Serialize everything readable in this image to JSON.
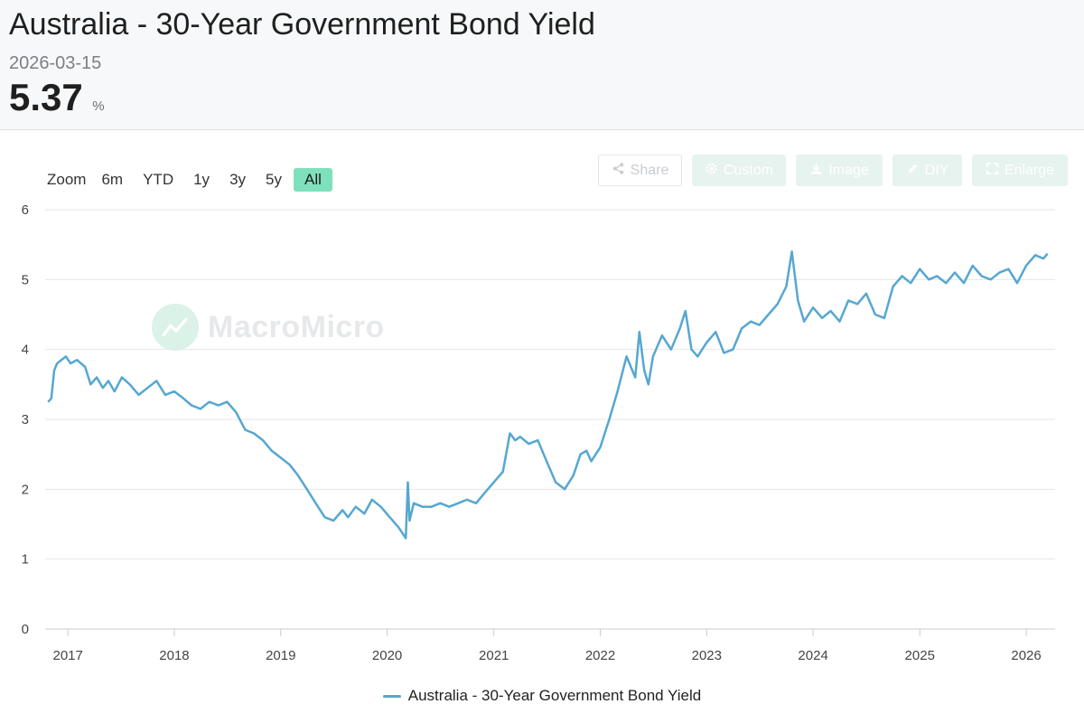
{
  "header": {
    "title": "Australia - 30-Year Government Bond Yield",
    "date": "2026-03-15",
    "value": "5.37",
    "unit": "%"
  },
  "zoom": {
    "label": "Zoom",
    "options": [
      "6m",
      "YTD",
      "1y",
      "3y",
      "5y",
      "All"
    ],
    "active": "All"
  },
  "toolbar": {
    "share": "Share",
    "custom": "Custom",
    "image": "Image",
    "diy": "DIY",
    "enlarge": "Enlarge"
  },
  "watermark": {
    "text": "MacroMicro"
  },
  "legend": {
    "label": "Australia - 30-Year Government Bond Yield"
  },
  "colors": {
    "series": "#56a7d1",
    "zoom_active": "#7fe0bd",
    "grid": "#e6e6e6"
  },
  "chart_data": {
    "type": "line",
    "title": "",
    "xlabel": "",
    "ylabel": "",
    "ylim": [
      0,
      6
    ],
    "yticks": [
      "0",
      "1",
      "2",
      "3",
      "4",
      "5",
      "6"
    ],
    "xticks": [
      "2017",
      "2018",
      "2019",
      "2020",
      "2021",
      "2022",
      "2023",
      "2024",
      "2025",
      "2026"
    ],
    "xlim": [
      "2016-10-15",
      "2026-04-10"
    ],
    "grid": true,
    "legend_position": "bottom-center",
    "series": [
      {
        "name": "Australia - 30-Year Government Bond Yield",
        "color": "#56a7d1",
        "x": [
          "2016-10-25",
          "2016-11-05",
          "2016-11-15",
          "2016-11-25",
          "2016-12-10",
          "2016-12-25",
          "2017-01-10",
          "2017-02-01",
          "2017-03-01",
          "2017-03-20",
          "2017-04-10",
          "2017-05-01",
          "2017-05-20",
          "2017-06-10",
          "2017-07-05",
          "2017-08-01",
          "2017-09-01",
          "2017-10-01",
          "2017-11-01",
          "2017-12-01",
          "2018-01-01",
          "2018-02-01",
          "2018-03-01",
          "2018-04-01",
          "2018-05-01",
          "2018-06-01",
          "2018-07-01",
          "2018-08-01",
          "2018-09-01",
          "2018-10-01",
          "2018-11-01",
          "2018-12-01",
          "2019-01-01",
          "2019-02-01",
          "2019-03-01",
          "2019-04-01",
          "2019-05-01",
          "2019-06-01",
          "2019-07-01",
          "2019-08-01",
          "2019-08-20",
          "2019-09-15",
          "2019-10-15",
          "2019-11-10",
          "2019-12-10",
          "2020-01-10",
          "2020-02-10",
          "2020-03-05",
          "2020-03-12",
          "2020-03-18",
          "2020-04-01",
          "2020-05-01",
          "2020-06-01",
          "2020-07-01",
          "2020-08-01",
          "2020-09-01",
          "2020-10-01",
          "2020-11-01",
          "2020-12-01",
          "2021-01-01",
          "2021-02-01",
          "2021-02-25",
          "2021-03-15",
          "2021-04-01",
          "2021-05-01",
          "2021-06-01",
          "2021-07-01",
          "2021-08-01",
          "2021-09-01",
          "2021-10-01",
          "2021-10-25",
          "2021-11-15",
          "2021-12-01",
          "2022-01-01",
          "2022-02-01",
          "2022-03-01",
          "2022-04-01",
          "2022-05-01",
          "2022-05-15",
          "2022-06-01",
          "2022-06-15",
          "2022-07-01",
          "2022-08-01",
          "2022-09-01",
          "2022-10-01",
          "2022-10-20",
          "2022-11-10",
          "2022-12-01",
          "2023-01-01",
          "2023-02-01",
          "2023-03-01",
          "2023-04-01",
          "2023-05-01",
          "2023-06-01",
          "2023-07-01",
          "2023-08-01",
          "2023-09-01",
          "2023-10-01",
          "2023-10-20",
          "2023-11-10",
          "2023-12-01",
          "2024-01-01",
          "2024-02-01",
          "2024-03-01",
          "2024-04-01",
          "2024-05-01",
          "2024-06-01",
          "2024-07-01",
          "2024-08-01",
          "2024-09-01",
          "2024-10-01",
          "2024-11-01",
          "2024-12-01",
          "2025-01-01",
          "2025-02-01",
          "2025-03-01",
          "2025-04-01",
          "2025-05-01",
          "2025-06-01",
          "2025-07-01",
          "2025-08-01",
          "2025-09-01",
          "2025-10-01",
          "2025-11-01",
          "2025-12-01",
          "2026-01-01",
          "2026-02-01",
          "2026-03-01",
          "2026-03-15"
        ],
        "values": [
          3.25,
          3.3,
          3.7,
          3.8,
          3.85,
          3.9,
          3.8,
          3.85,
          3.75,
          3.5,
          3.6,
          3.45,
          3.55,
          3.4,
          3.6,
          3.5,
          3.35,
          3.45,
          3.55,
          3.35,
          3.4,
          3.3,
          3.2,
          3.15,
          3.25,
          3.2,
          3.25,
          3.1,
          2.85,
          2.8,
          2.7,
          2.55,
          2.45,
          2.35,
          2.2,
          2.0,
          1.8,
          1.6,
          1.55,
          1.7,
          1.6,
          1.75,
          1.65,
          1.85,
          1.75,
          1.6,
          1.45,
          1.3,
          2.1,
          1.55,
          1.8,
          1.75,
          1.75,
          1.8,
          1.75,
          1.8,
          1.85,
          1.8,
          1.95,
          2.1,
          2.25,
          2.8,
          2.7,
          2.75,
          2.65,
          2.7,
          2.4,
          2.1,
          2.0,
          2.2,
          2.5,
          2.55,
          2.4,
          2.6,
          3.0,
          3.4,
          3.9,
          3.6,
          4.25,
          3.7,
          3.5,
          3.9,
          4.2,
          4.0,
          4.3,
          4.55,
          4.0,
          3.9,
          4.1,
          4.25,
          3.95,
          4.0,
          4.3,
          4.4,
          4.35,
          4.5,
          4.65,
          4.9,
          5.4,
          4.7,
          4.4,
          4.6,
          4.45,
          4.55,
          4.4,
          4.7,
          4.65,
          4.8,
          4.5,
          4.45,
          4.9,
          5.05,
          4.95,
          5.15,
          5.0,
          5.05,
          4.95,
          5.1,
          4.95,
          5.2,
          5.05,
          5.0,
          5.1,
          5.15,
          4.95,
          5.2,
          5.35,
          5.3,
          5.37
        ]
      }
    ]
  }
}
